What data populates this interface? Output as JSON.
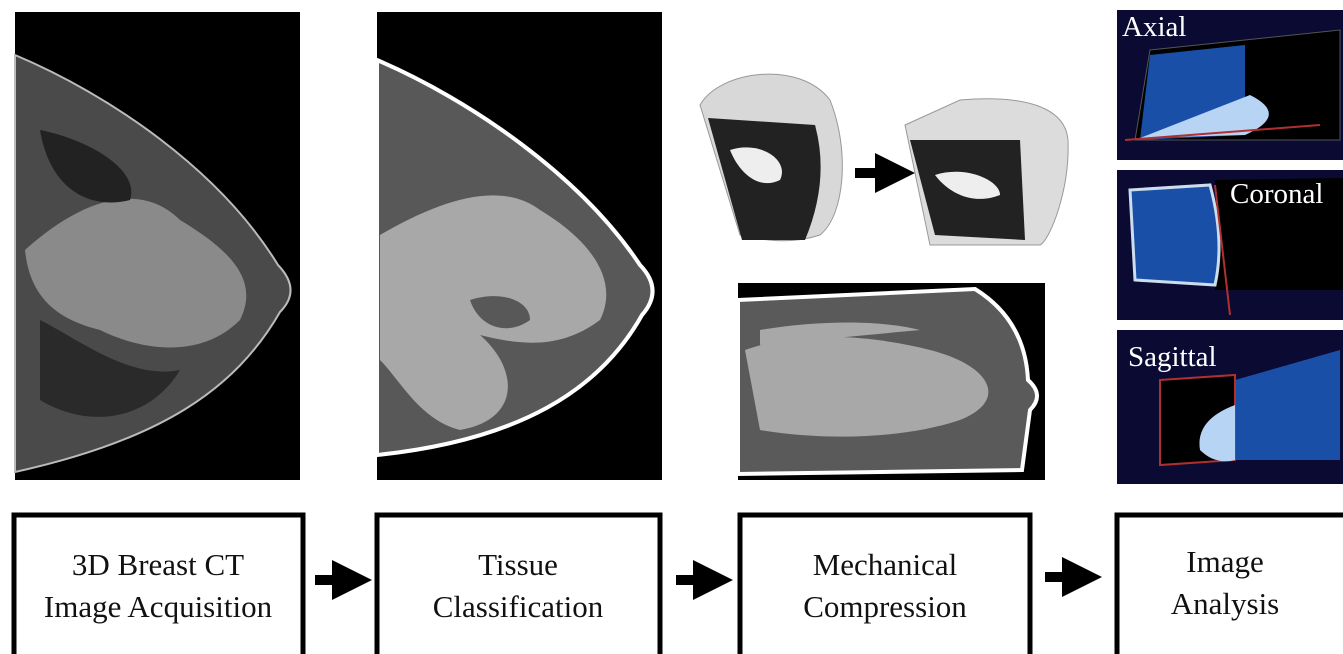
{
  "views": [
    {
      "label": "Axial"
    },
    {
      "label": "Coronal"
    },
    {
      "label": "Sagittal"
    }
  ],
  "steps": [
    {
      "lines": [
        "3D Breast CT",
        "Image Acquisition"
      ]
    },
    {
      "lines": [
        "Tissue",
        "Classification"
      ]
    },
    {
      "lines": [
        "Mechanical",
        "Compression"
      ]
    },
    {
      "lines": [
        "Image",
        "Analysis"
      ]
    }
  ]
}
